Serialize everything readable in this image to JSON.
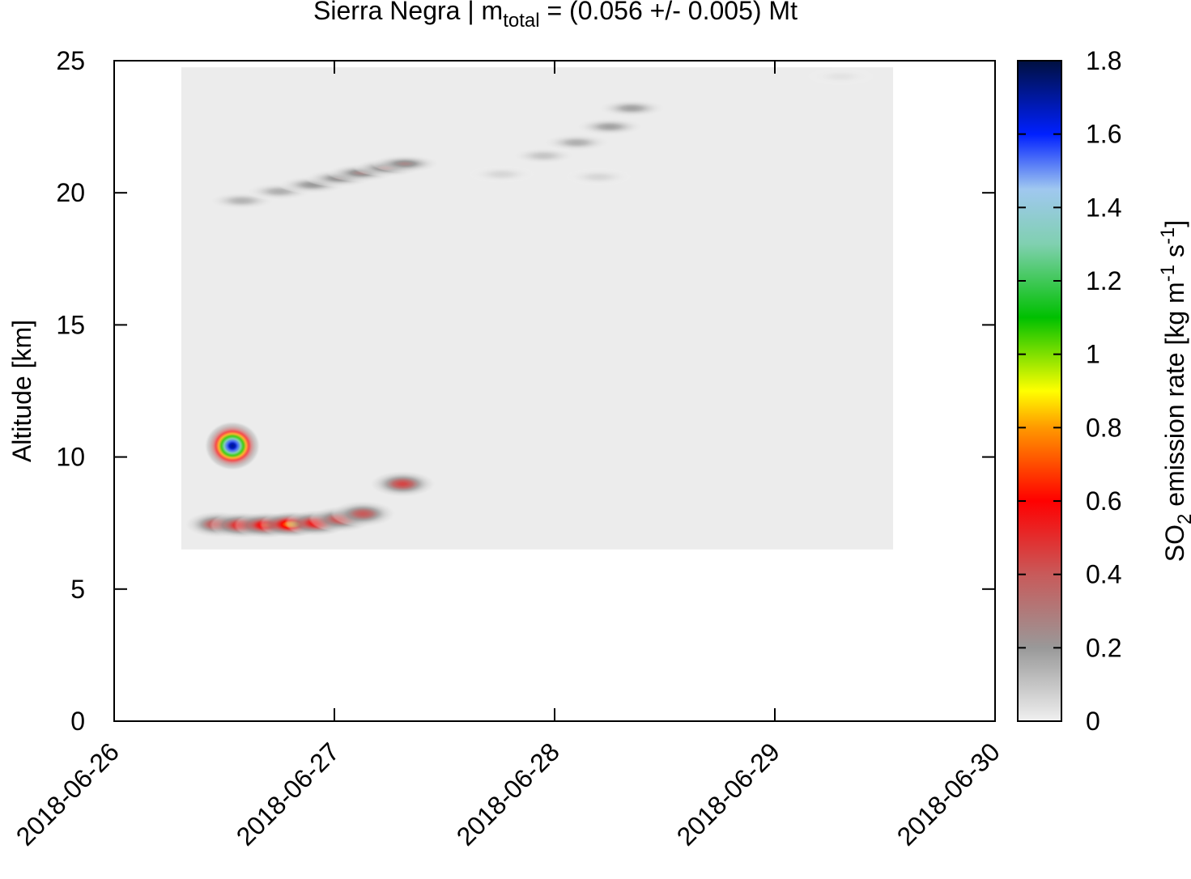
{
  "chart_data": {
    "type": "heatmap",
    "title_parts": [
      "Sierra Negra | m",
      "total",
      " = (0.056 +/- 0.005) Mt"
    ],
    "ylabel": "Altitude [km]",
    "colorbar_label_parts": [
      "SO",
      "2",
      " emission rate [kg m",
      "-1",
      " s",
      "-1",
      "]"
    ],
    "xlim": [
      0,
      4
    ],
    "xticks": [
      {
        "value": 0,
        "label": "2018-06-26"
      },
      {
        "value": 1,
        "label": "2018-06-27"
      },
      {
        "value": 2,
        "label": "2018-06-28"
      },
      {
        "value": 3,
        "label": "2018-06-29"
      },
      {
        "value": 4,
        "label": "2018-06-30"
      }
    ],
    "ylim": [
      0,
      25
    ],
    "yticks": [
      0,
      5,
      10,
      15,
      20,
      25
    ],
    "clim": [
      0,
      1.8
    ],
    "cticks": [
      0,
      0.2,
      0.4,
      0.6,
      0.8,
      1,
      1.2,
      1.4,
      1.6,
      1.8
    ],
    "colormap": [
      {
        "value": 0,
        "color": "#f0f0f0"
      },
      {
        "value": 0.2,
        "color": "#999999"
      },
      {
        "value": 0.4,
        "color": "#c85a5a"
      },
      {
        "value": 0.6,
        "color": "#ff0000"
      },
      {
        "value": 0.8,
        "color": "#ff9900"
      },
      {
        "value": 0.9,
        "color": "#ffff00"
      },
      {
        "value": 1.1,
        "color": "#00c000"
      },
      {
        "value": 1.3,
        "color": "#80d0b0"
      },
      {
        "value": 1.45,
        "color": "#a0c8f0"
      },
      {
        "value": 1.6,
        "color": "#0020ff"
      },
      {
        "value": 1.8,
        "color": "#001040"
      }
    ],
    "coverage": {
      "x": [
        0.305,
        3.537
      ],
      "y": [
        6.5,
        24.75
      ],
      "value": 0.01
    },
    "points": {
      "x": [
        0.537,
        0.47,
        0.58,
        0.69,
        0.805,
        0.92,
        1.03,
        1.13,
        1.31,
        0.58,
        0.75,
        0.9,
        1.02,
        1.12,
        1.24,
        1.32,
        1.76,
        1.95,
        2.1,
        2.25,
        2.35,
        2.2,
        3.3
      ],
      "y": [
        10.42,
        7.45,
        7.42,
        7.42,
        7.45,
        7.5,
        7.65,
        7.85,
        8.98,
        19.7,
        20.05,
        20.3,
        20.55,
        20.75,
        20.95,
        21.1,
        20.7,
        21.4,
        21.9,
        22.5,
        23.2,
        20.6,
        24.4
      ],
      "values": [
        1.72,
        0.45,
        0.58,
        0.65,
        0.8,
        0.6,
        0.45,
        0.4,
        0.45,
        0.14,
        0.15,
        0.2,
        0.22,
        0.25,
        0.27,
        0.25,
        0.06,
        0.1,
        0.15,
        0.18,
        0.18,
        0.06,
        0.03
      ]
    }
  }
}
